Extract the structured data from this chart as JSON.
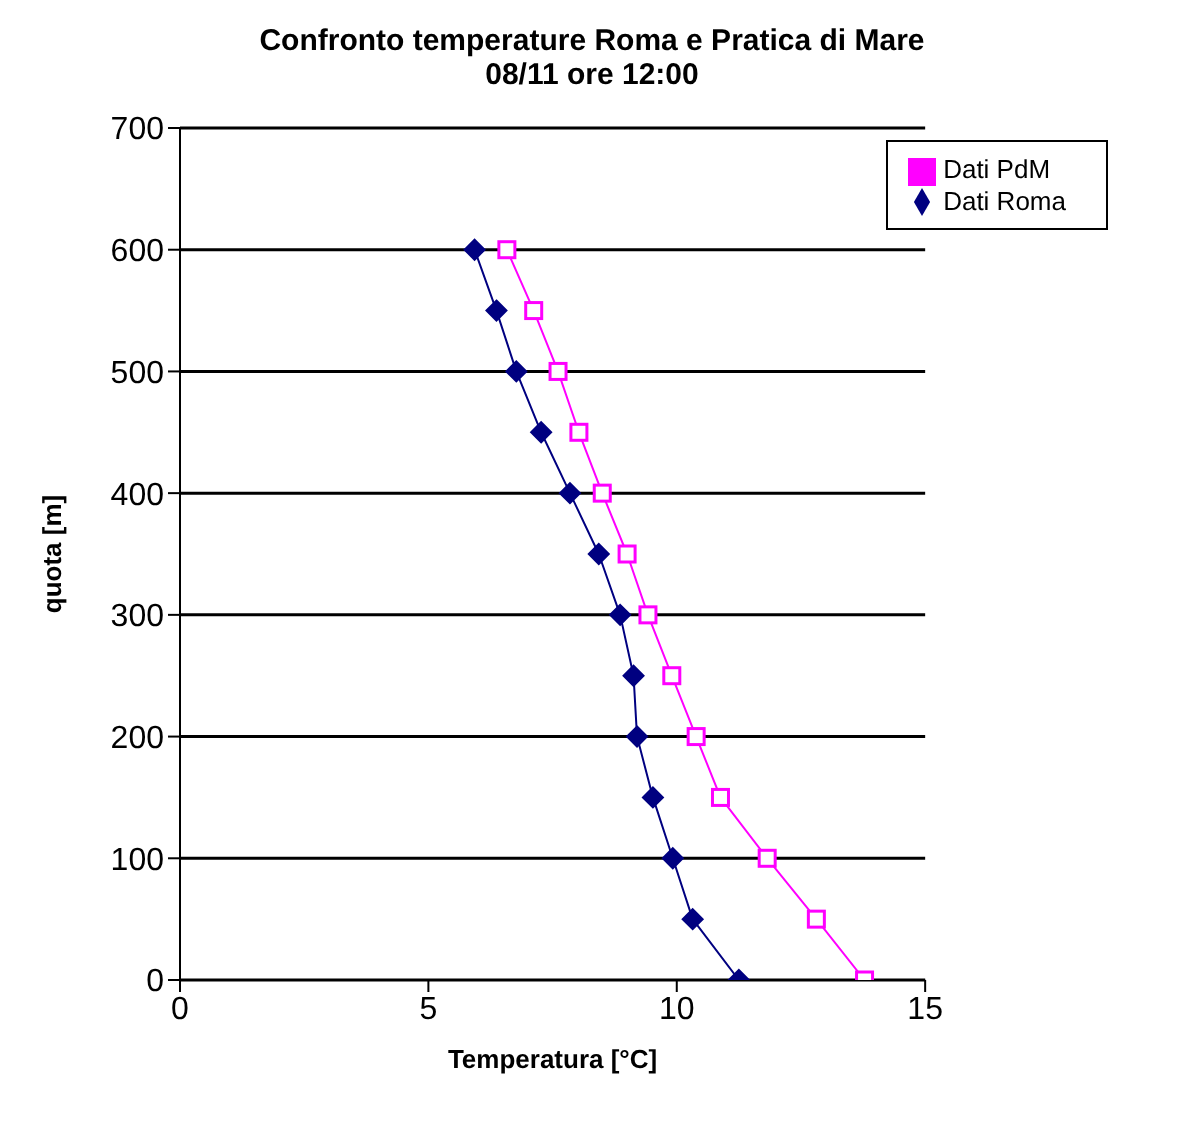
{
  "chart_data": {
    "type": "line",
    "title": "Confronto temperature Roma e Pratica di Mare",
    "subtitle": "08/11 ore 12:00",
    "xlabel": "Temperatura [°C]",
    "ylabel": "quota [m]",
    "xlim": [
      0,
      15
    ],
    "xticks": [
      0,
      5,
      10,
      15
    ],
    "ylim": [
      0,
      700
    ],
    "yticks": [
      0,
      100,
      200,
      300,
      400,
      500,
      600,
      700
    ],
    "grid": "y",
    "legend": "top right",
    "series": [
      {
        "name": "Dati Roma",
        "color": "#000080",
        "marker": "diamond",
        "x": [
          5.93,
          6.37,
          6.77,
          7.27,
          7.85,
          8.43,
          8.86,
          9.13,
          9.2,
          9.52,
          9.92,
          10.32,
          11.25
        ],
        "values": [
          600,
          550,
          500,
          450,
          400,
          350,
          300,
          250,
          200,
          150,
          100,
          50,
          0
        ]
      },
      {
        "name": "Dati PdM",
        "color": "#ff00ff",
        "marker": "square",
        "x": [
          6.58,
          7.12,
          7.61,
          8.03,
          8.5,
          9.0,
          9.42,
          9.9,
          10.39,
          10.88,
          11.82,
          12.81,
          13.78
        ],
        "values": [
          600,
          550,
          500,
          450,
          400,
          350,
          300,
          250,
          200,
          150,
          100,
          50,
          0
        ]
      }
    ]
  }
}
